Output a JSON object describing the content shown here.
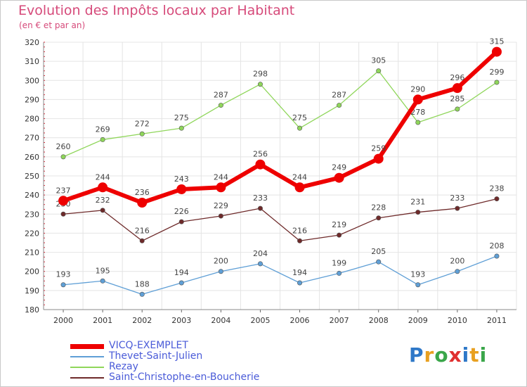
{
  "title": "Evolution des Impôts locaux par Habitant",
  "subtitle": "(en € et par an)",
  "logo": {
    "text": "Proxiti",
    "letters": [
      {
        "ch": "P",
        "color": "#2e78c8"
      },
      {
        "ch": "r",
        "color": "#e8a020"
      },
      {
        "ch": "o",
        "color": "#3aa64a"
      },
      {
        "ch": "x",
        "color": "#e03030"
      },
      {
        "ch": "i",
        "color": "#2e78c8"
      },
      {
        "ch": "t",
        "color": "#e8a020"
      },
      {
        "ch": "i",
        "color": "#3aa64a"
      }
    ]
  },
  "chart_data": {
    "type": "line",
    "x": [
      "2000",
      "2001",
      "2002",
      "2003",
      "2004",
      "2005",
      "2006",
      "2007",
      "2008",
      "2009",
      "2010",
      "2011"
    ],
    "ylim": [
      180,
      320
    ],
    "yticks": [
      180,
      190,
      200,
      210,
      220,
      230,
      240,
      250,
      260,
      270,
      280,
      290,
      300,
      310,
      320
    ],
    "grid": true,
    "legend_position": "bottom-left",
    "series": [
      {
        "name": "Rezay",
        "color": "#8fd65a",
        "values": [
          260,
          269,
          272,
          275,
          287,
          298,
          275,
          287,
          305,
          278,
          285,
          299
        ]
      },
      {
        "name": "Saint-Christophe-en-Boucherie",
        "color": "#6e2a2a",
        "values": [
          230,
          232,
          216,
          226,
          229,
          233,
          216,
          219,
          228,
          231,
          233,
          238
        ]
      },
      {
        "name": "Thevet-Saint-Julien",
        "color": "#5f9fd6",
        "values": [
          193,
          195,
          188,
          194,
          200,
          204,
          194,
          199,
          205,
          193,
          200,
          208
        ]
      },
      {
        "name": "VICQ-EXEMPLET",
        "color": "#ee0000",
        "values": [
          237,
          244,
          236,
          243,
          244,
          256,
          244,
          249,
          259,
          290,
          296,
          315
        ]
      }
    ],
    "legend_order": [
      "VICQ-EXEMPLET",
      "Thevet-Saint-Julien",
      "Rezay",
      "Saint-Christophe-en-Boucherie"
    ]
  }
}
